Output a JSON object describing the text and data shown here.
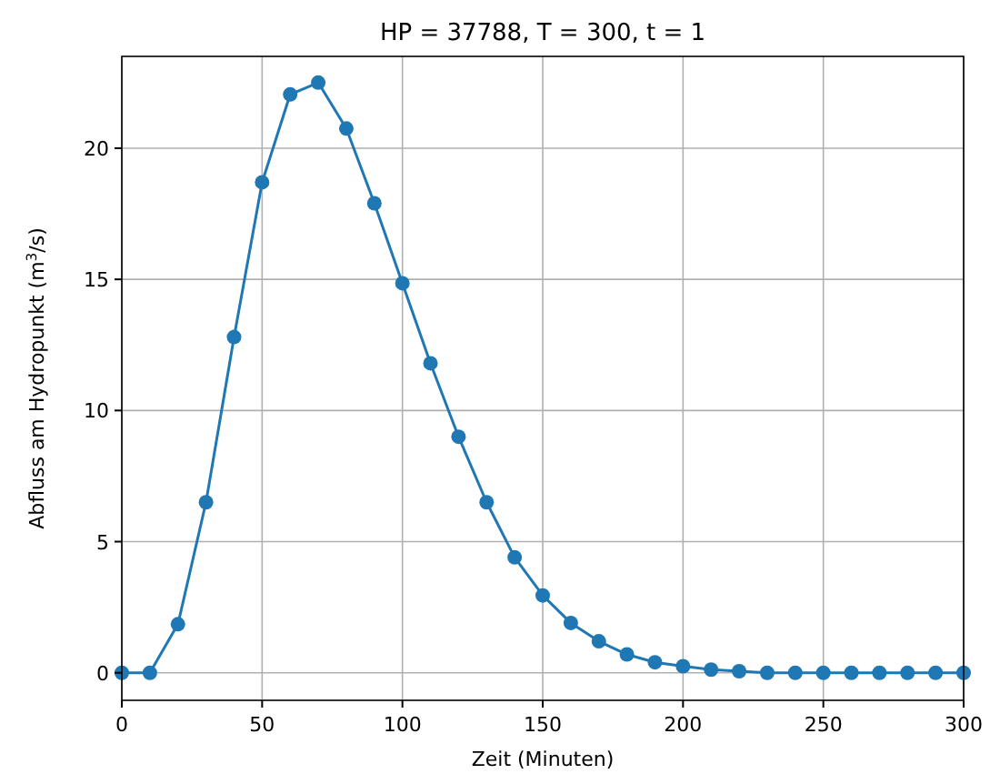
{
  "chart_data": {
    "type": "line",
    "title": "HP = 37788, T = 300, t = 1",
    "xlabel": "Zeit (Minuten)",
    "ylabel": "Abfluss am Hydropunkt (m$^{3}$/s)",
    "x": [
      0,
      10,
      20,
      30,
      40,
      50,
      60,
      70,
      80,
      90,
      100,
      110,
      120,
      130,
      140,
      150,
      160,
      170,
      180,
      190,
      200,
      210,
      220,
      230,
      240,
      250,
      260,
      270,
      280,
      290,
      300
    ],
    "series": [
      {
        "color": "#1f77b4",
        "values": [
          0,
          0,
          1.85,
          6.5,
          12.8,
          18.7,
          22.05,
          22.5,
          20.75,
          17.9,
          14.85,
          11.8,
          9.0,
          6.5,
          4.4,
          2.95,
          1.9,
          1.2,
          0.7,
          0.4,
          0.25,
          0.12,
          0.06,
          0,
          0,
          0,
          0,
          0,
          0,
          0,
          0
        ]
      }
    ],
    "xlim": [
      0,
      300
    ],
    "ylim": [
      -1.05,
      23.5
    ],
    "xticks": [
      0,
      50,
      100,
      150,
      200,
      250,
      300
    ],
    "yticks": [
      0,
      5,
      10,
      15,
      20
    ],
    "grid": true,
    "marker": "circle",
    "line_style": "solid"
  }
}
